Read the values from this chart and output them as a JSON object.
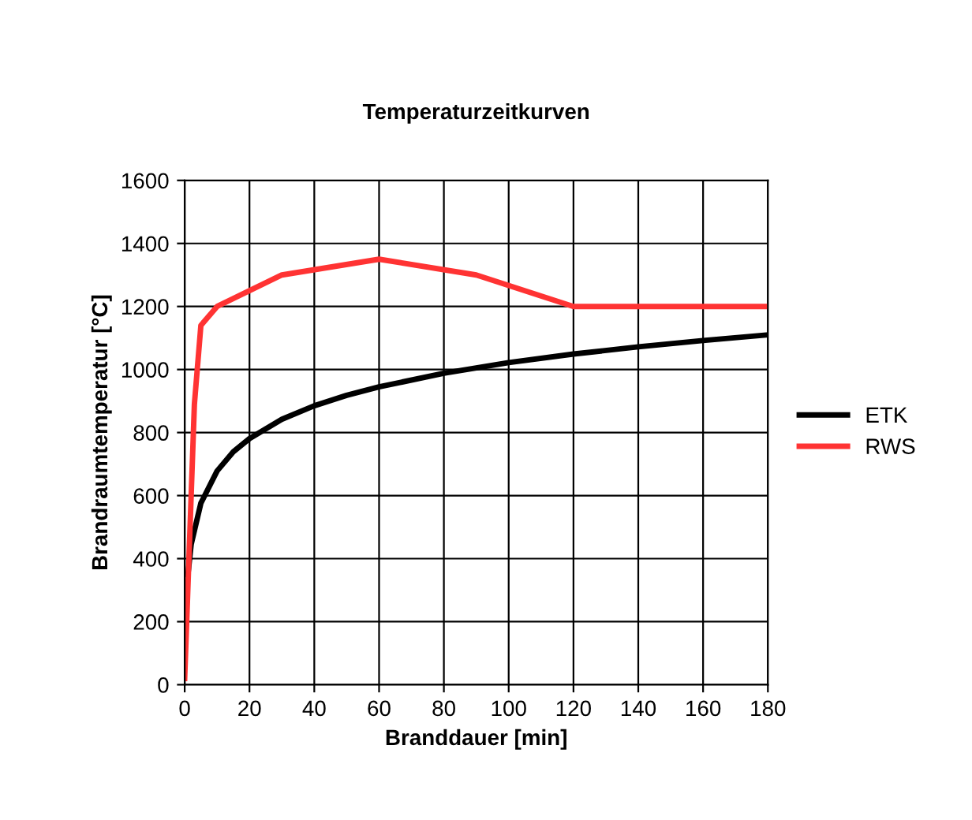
{
  "chart_data": {
    "type": "line",
    "title": "Temperaturzeitkurven",
    "xlabel": "Branddauer [min]",
    "ylabel": "Brandraumtemperatur [°C]",
    "xlim": [
      0,
      180
    ],
    "xticks": [
      0,
      20,
      40,
      60,
      80,
      100,
      120,
      140,
      160,
      180
    ],
    "ylim": [
      0,
      1600
    ],
    "yticks": [
      0,
      200,
      400,
      600,
      800,
      1000,
      1200,
      1400,
      1600
    ],
    "grid": true,
    "legend": "right",
    "marker": "none",
    "line_style": "solid",
    "series": [
      {
        "name": "ETK",
        "color": "#000000",
        "x": [
          1,
          2,
          5,
          10,
          15,
          20,
          30,
          40,
          50,
          60,
          80,
          100,
          120,
          140,
          160,
          180
        ],
        "values": [
          349,
          445,
          576,
          678,
          739,
          781,
          842,
          885,
          918,
          945,
          988,
          1022,
          1049,
          1072,
          1092,
          1110
        ]
      },
      {
        "name": "RWS",
        "color": "#ff3333",
        "x": [
          0,
          3,
          5,
          10,
          30,
          60,
          90,
          120,
          180
        ],
        "values": [
          20,
          890,
          1140,
          1200,
          1300,
          1350,
          1300,
          1200,
          1200
        ]
      }
    ]
  }
}
